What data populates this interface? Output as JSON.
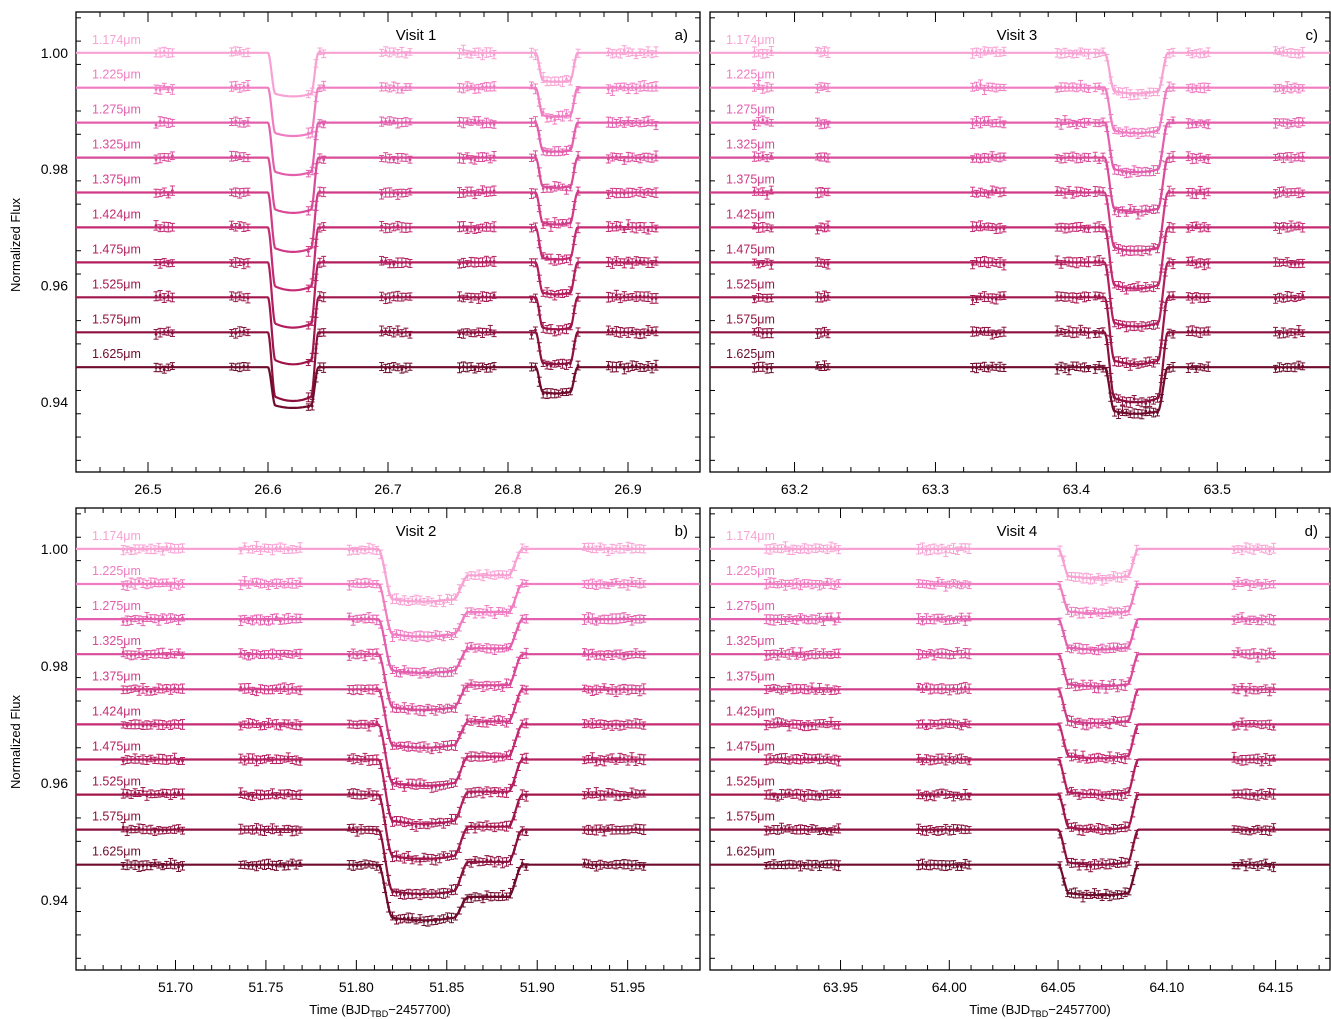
{
  "figure": {
    "ylabel": "Normalized Flux",
    "xlabel_main": "Time (BJD",
    "xlabel_sub": "TBD",
    "xlabel_tail": "−2457700)"
  },
  "colors": [
    "#f8a2d4",
    "#f07cc2",
    "#e35fae",
    "#d94b99",
    "#d03b87",
    "#c42b73",
    "#b31e5e",
    "#a0164c",
    "#8b103d",
    "#6f0b2c"
  ],
  "chart_data": [
    {
      "type": "scatter",
      "title": "Visit 1",
      "letter": "a)",
      "xlim": [
        26.44,
        26.96
      ],
      "xticks": [
        26.5,
        26.6,
        26.7,
        26.8,
        26.9
      ],
      "xtick_labels": [
        "26.5",
        "26.6",
        "26.7",
        "26.8",
        "26.9"
      ],
      "ylim": [
        0.928,
        1.007
      ],
      "yticks": [
        0.94,
        0.96,
        0.98,
        1.0
      ],
      "ytick_labels": [
        "0.94",
        "0.96",
        "0.98",
        "1.00"
      ],
      "wavelength_labels": [
        "1.174μm",
        "1.225μm",
        "1.275μm",
        "1.325μm",
        "1.375μm",
        "1.424μm",
        "1.475μm",
        "1.525μm",
        "1.575μm",
        "1.625μm"
      ],
      "baselines": [
        1.0,
        0.994,
        0.988,
        0.982,
        0.976,
        0.97,
        0.964,
        0.958,
        0.952,
        0.946
      ],
      "primary_transit": {
        "t1": 26.6,
        "t4": 26.642,
        "ingress": 0.006,
        "depths": [
          0.0075,
          0.0083,
          0.009,
          0.0095,
          0.0102,
          0.0108,
          0.0112,
          0.0115,
          0.0118,
          0.007
        ]
      },
      "secondary_transit": {
        "t1": 26.823,
        "t4": 26.858,
        "ingress": 0.006,
        "depths": [
          0.005,
          0.005,
          0.005,
          0.0052,
          0.0055,
          0.0055,
          0.0055,
          0.0055,
          0.0055,
          0.0045
        ]
      },
      "data_windows": [
        [
          26.505,
          26.522
        ],
        [
          26.568,
          26.585
        ],
        [
          26.632,
          26.648
        ],
        [
          26.693,
          26.72
        ],
        [
          26.758,
          26.79
        ],
        [
          26.818,
          26.86
        ],
        [
          26.882,
          26.925
        ]
      ]
    },
    {
      "type": "scatter",
      "title": "Visit 3",
      "letter": "c)",
      "xlim": [
        63.14,
        63.58
      ],
      "xticks": [
        63.2,
        63.3,
        63.4,
        63.5
      ],
      "xtick_labels": [
        "63.2",
        "63.3",
        "63.4",
        "63.5"
      ],
      "ylim": [
        0.928,
        1.007
      ],
      "yticks": [
        0.94,
        0.96,
        0.98,
        1.0
      ],
      "ytick_labels": [
        "",
        "",
        "",
        ""
      ],
      "wavelength_labels": [
        "1.174μm",
        "1.225μm",
        "1.275μm",
        "1.325μm",
        "1.375μm",
        "1.425μm",
        "1.475μm",
        "1.525μm",
        "1.575μm",
        "1.625μm"
      ],
      "baselines": [
        1.0,
        0.994,
        0.988,
        0.982,
        0.976,
        0.97,
        0.964,
        0.958,
        0.952,
        0.946
      ],
      "primary_transit": {
        "t1": 63.42,
        "t4": 63.465,
        "ingress": 0.007,
        "depths": [
          0.007,
          0.0078,
          0.0085,
          0.0093,
          0.01,
          0.0105,
          0.011,
          0.0115,
          0.012,
          0.008
        ]
      },
      "secondary_transit": null,
      "data_windows": [
        [
          63.17,
          63.185
        ],
        [
          63.215,
          63.225
        ],
        [
          63.325,
          63.35
        ],
        [
          63.385,
          63.41
        ],
        [
          63.412,
          63.47
        ],
        [
          63.478,
          63.495
        ],
        [
          63.54,
          63.562
        ]
      ]
    },
    {
      "type": "scatter",
      "title": "Visit 2",
      "letter": "b)",
      "xlim": [
        51.645,
        51.99
      ],
      "xticks": [
        51.7,
        51.75,
        51.8,
        51.85,
        51.9,
        51.95
      ],
      "xtick_labels": [
        "51.70",
        "51.75",
        "51.80",
        "51.85",
        "51.90",
        "51.95"
      ],
      "ylim": [
        0.928,
        1.007
      ],
      "yticks": [
        0.94,
        0.96,
        0.98,
        1.0
      ],
      "ytick_labels": [
        "0.94",
        "0.96",
        "0.98",
        "1.00"
      ],
      "wavelength_labels": [
        "1.174μm",
        "1.225μm",
        "1.275μm",
        "1.325μm",
        "1.375μm",
        "1.424μm",
        "1.475μm",
        "1.525μm",
        "1.575μm",
        "1.625μm"
      ],
      "baselines": [
        1.0,
        0.994,
        0.988,
        0.982,
        0.976,
        0.97,
        0.964,
        0.958,
        0.952,
        0.946
      ],
      "double_transit": {
        "t1": 51.812,
        "tmid": 51.862,
        "t4": 51.892,
        "ingress": 0.008,
        "deep": [
          0.009,
          0.009,
          0.0092,
          0.0095,
          0.01,
          0.0105,
          0.011,
          0.011,
          0.011,
          0.0095
        ],
        "shallow": [
          0.0045,
          0.0048,
          0.005,
          0.0053,
          0.0055,
          0.0055,
          0.0055,
          0.0055,
          0.0055,
          0.0055
        ]
      },
      "data_windows": [
        [
          51.67,
          51.705
        ],
        [
          51.735,
          51.77
        ],
        [
          51.795,
          51.895
        ],
        [
          51.925,
          51.96
        ]
      ]
    },
    {
      "type": "scatter",
      "title": "Visit 4",
      "letter": "d)",
      "xlim": [
        63.89,
        64.175
      ],
      "xticks": [
        63.95,
        64.0,
        64.05,
        64.1,
        64.15
      ],
      "xtick_labels": [
        "63.95",
        "64.00",
        "64.05",
        "64.10",
        "64.15"
      ],
      "ylim": [
        0.928,
        1.007
      ],
      "yticks": [
        0.94,
        0.96,
        0.98,
        1.0
      ],
      "ytick_labels": [
        "",
        "",
        "",
        ""
      ],
      "wavelength_labels": [
        "1.174μm",
        "1.225μm",
        "1.275μm",
        "1.325μm",
        "1.375μm",
        "1.425μm",
        "1.475μm",
        "1.525μm",
        "1.575μm",
        "1.625μm"
      ],
      "baselines": [
        1.0,
        0.994,
        0.988,
        0.982,
        0.976,
        0.97,
        0.964,
        0.958,
        0.952,
        0.946
      ],
      "primary_transit": {
        "t1": 64.05,
        "t4": 64.087,
        "ingress": 0.005,
        "depths": [
          0.005,
          0.005,
          0.0052,
          0.0055,
          0.0058,
          0.0058,
          0.006,
          0.006,
          0.006,
          0.0052
        ]
      },
      "secondary_transit": null,
      "data_windows": [
        [
          63.915,
          63.95
        ],
        [
          63.985,
          64.01
        ],
        [
          64.05,
          64.087
        ],
        [
          64.13,
          64.15
        ]
      ]
    }
  ]
}
